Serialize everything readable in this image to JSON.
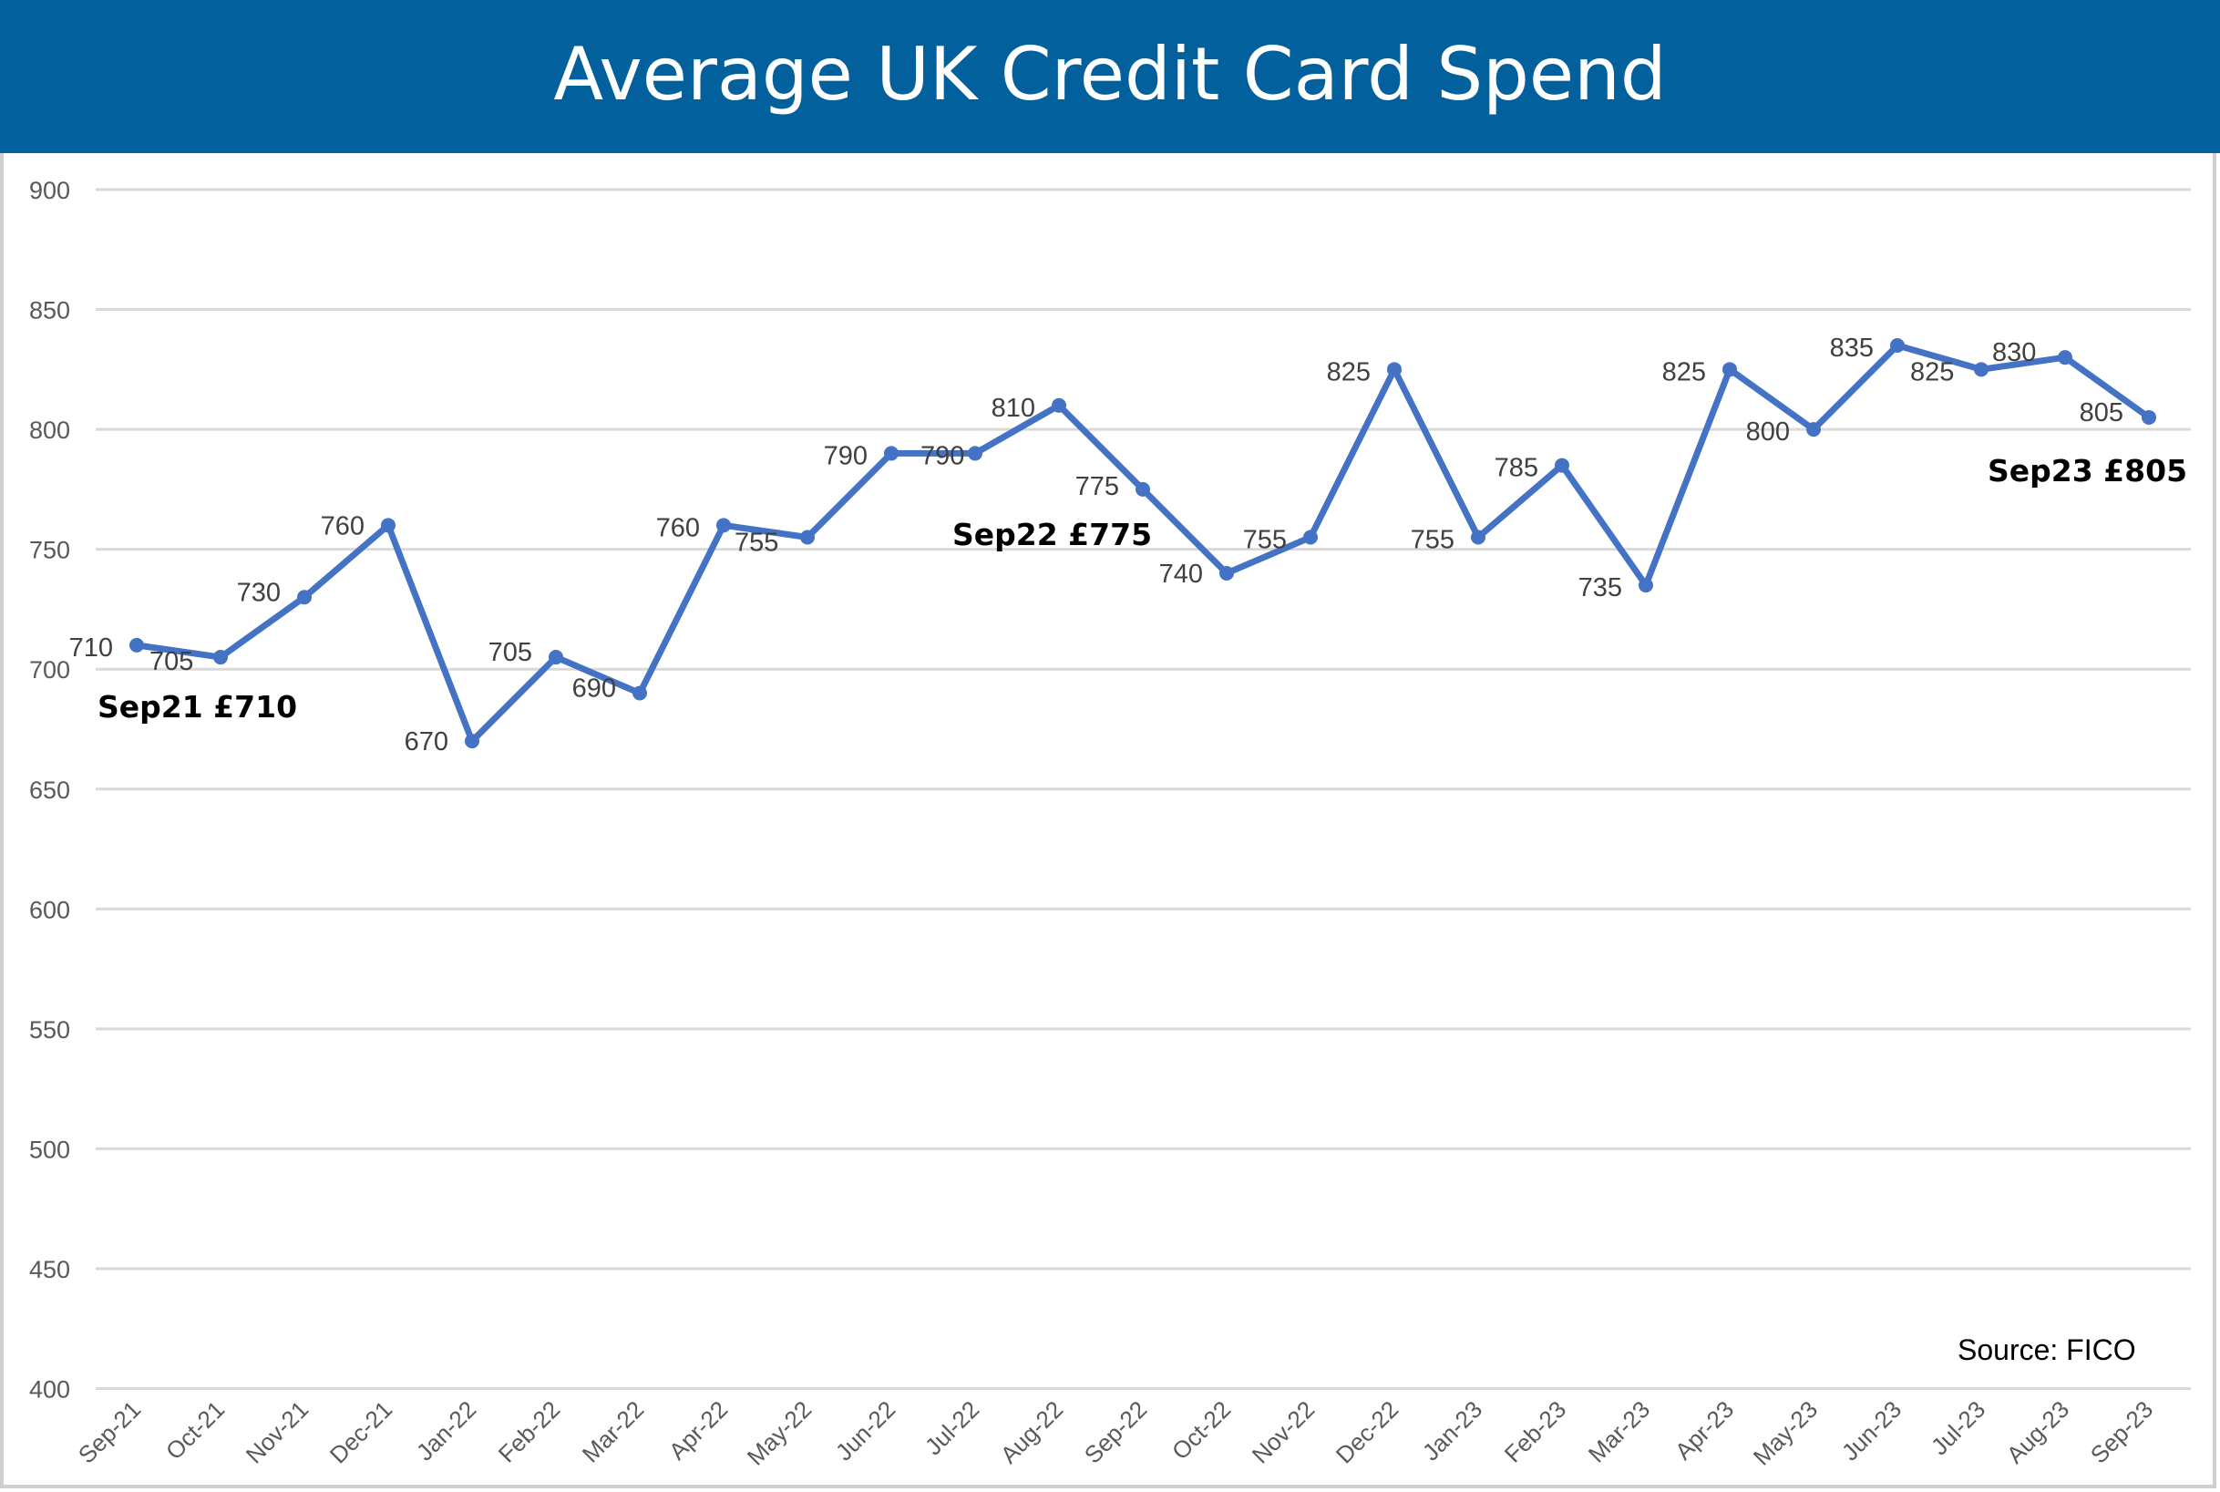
{
  "header": {
    "title": "Average UK Credit Card Spend",
    "background_color": "#02609c"
  },
  "source_note": "Source: FICO",
  "annotations": [
    {
      "text": "Sep21 £710",
      "index": 0
    },
    {
      "text": "Sep22 £775",
      "index": 12
    },
    {
      "text": "Sep23 £805",
      "index": 24
    }
  ],
  "chart_data": {
    "type": "line",
    "title": "Average UK Credit Card Spend",
    "xlabel": "",
    "ylabel": "",
    "ylim": [
      400,
      900
    ],
    "yticks": [
      900,
      850,
      800,
      750,
      700,
      650,
      600,
      550,
      500,
      450,
      400
    ],
    "grid": true,
    "legend": "none",
    "line_color": "#4472c4",
    "categories": [
      "Sep-21",
      "Oct-21",
      "Nov-21",
      "Dec-21",
      "Jan-22",
      "Feb-22",
      "Mar-22",
      "Apr-22",
      "May-22",
      "Jun-22",
      "Jul-22",
      "Aug-22",
      "Sep-22",
      "Oct-22",
      "Nov-22",
      "Dec-22",
      "Jan-23",
      "Feb-23",
      "Mar-23",
      "Apr-23",
      "May-23",
      "Jun-23",
      "Jul-23",
      "Aug-23",
      "Sep-23"
    ],
    "series": [
      {
        "name": "Average spend (£)",
        "values": [
          710,
          705,
          730,
          760,
          670,
          705,
          690,
          760,
          755,
          790,
          790,
          810,
          775,
          740,
          755,
          825,
          755,
          785,
          735,
          825,
          800,
          835,
          825,
          830,
          805
        ]
      }
    ],
    "annotations": [
      "Sep21 £710",
      "Sep22 £775",
      "Sep23 £805"
    ],
    "source": "Source: FICO"
  }
}
